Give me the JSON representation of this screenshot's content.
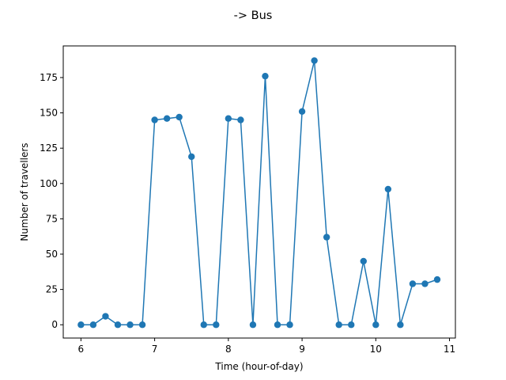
{
  "chart_data": {
    "type": "line",
    "title": "-> Bus",
    "xlabel": "Time (hour-of-day)",
    "ylabel": "Number of travellers",
    "xlim": [
      5.76,
      11.08
    ],
    "ylim": [
      -9.4,
      197.4
    ],
    "xticks": [
      6,
      7,
      8,
      9,
      10,
      11
    ],
    "yticks": [
      0,
      25,
      50,
      75,
      100,
      125,
      150,
      175
    ],
    "grid": false,
    "legend": "none",
    "series_color": "#1f77b4",
    "x": [
      6.0,
      6.1667,
      6.3333,
      6.5,
      6.6667,
      6.8333,
      7.0,
      7.1667,
      7.3333,
      7.5,
      7.6667,
      7.8333,
      8.0,
      8.1667,
      8.3333,
      8.5,
      8.6667,
      8.8333,
      9.0,
      9.1667,
      9.3333,
      9.5,
      9.6667,
      9.8333,
      10.0,
      10.1667,
      10.3333,
      10.5,
      10.6667,
      10.8333
    ],
    "series": [
      {
        "values": [
          0,
          0,
          6,
          0,
          0,
          0,
          145,
          146,
          147,
          119,
          0,
          0,
          146,
          145,
          0,
          176,
          0,
          0,
          151,
          187,
          62,
          0,
          0,
          45,
          0,
          96,
          0,
          29,
          29,
          32
        ]
      }
    ]
  }
}
